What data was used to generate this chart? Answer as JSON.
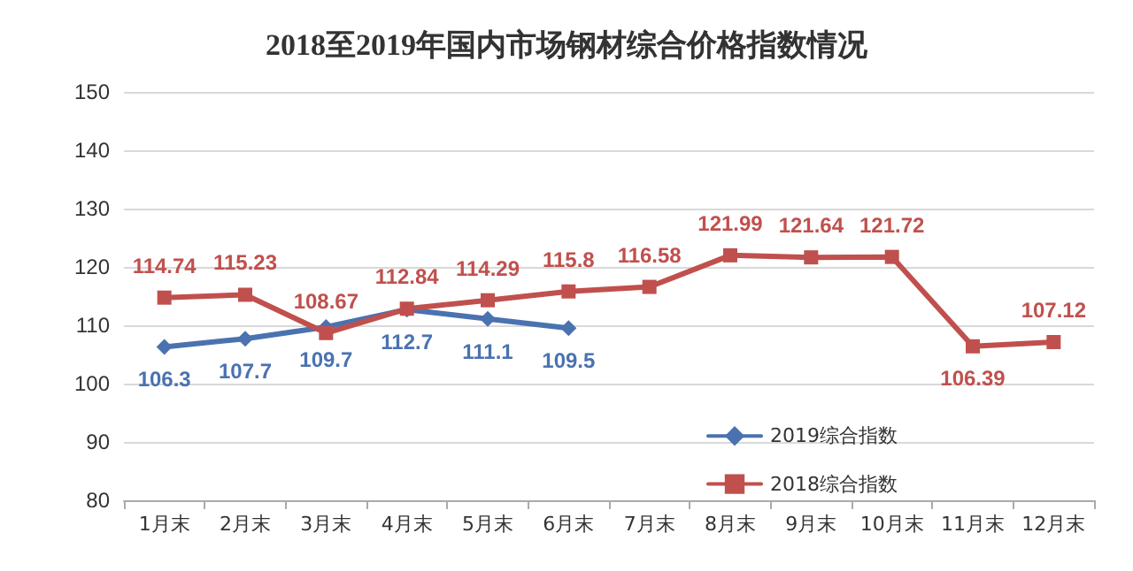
{
  "chart_data": {
    "type": "line",
    "title": "2018至2019年国内市场钢材综合价格指数情况",
    "categories": [
      "1月末",
      "2月末",
      "3月末",
      "4月末",
      "5月末",
      "6月末",
      "7月末",
      "8月末",
      "9月末",
      "10月末",
      "11月末",
      "12月末"
    ],
    "series": [
      {
        "name": "2019综合指数",
        "color": "#4a72b0",
        "marker": "diamond",
        "values": [
          106.3,
          107.7,
          109.7,
          112.7,
          111.1,
          109.5,
          null,
          null,
          null,
          null,
          null,
          null
        ]
      },
      {
        "name": "2018综合指数",
        "color": "#c0504d",
        "marker": "square",
        "values": [
          114.74,
          115.23,
          108.67,
          112.84,
          114.29,
          115.8,
          116.58,
          121.99,
          121.64,
          121.72,
          106.39,
          107.12
        ]
      }
    ],
    "ylim": [
      80,
      150
    ],
    "yticks": [
      80,
      90,
      100,
      110,
      120,
      130,
      140,
      150
    ],
    "grid": "y",
    "legend": "bottom right",
    "data_labels": true
  }
}
